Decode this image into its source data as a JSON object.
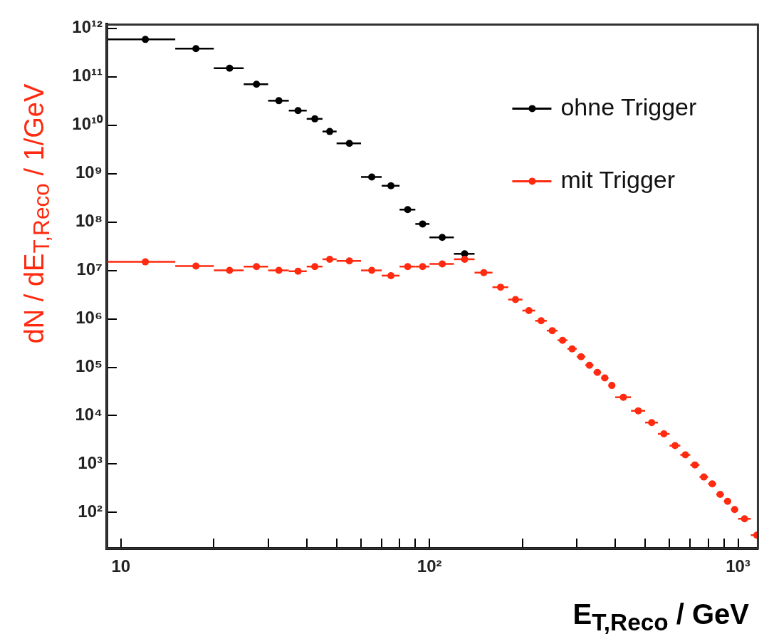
{
  "chart_data": {
    "type": "scatter",
    "xlabel": "E$_{T,Reco}$ / GeV",
    "ylabel": "dN / dE$_{T,Reco}$  /  1/GeV",
    "x": [
      12,
      17.5,
      22.5,
      27.5,
      32.5,
      37.5,
      42.5,
      47.5,
      55,
      65,
      75,
      85,
      95,
      110,
      130,
      150,
      170,
      190,
      210,
      230,
      250,
      270,
      290,
      310,
      330,
      350,
      370,
      390,
      425,
      475,
      525,
      575,
      625,
      675,
      725,
      775,
      825,
      875,
      925,
      975,
      1050,
      1150
    ],
    "series": [
      {
        "name": "ohne Trigger",
        "color": "#000000",
        "values": [
          590000000000.0,
          380000000000.0,
          150000000000.0,
          70000000000.0,
          32000000000.0,
          20000000000.0,
          13500000000.0,
          7400000000.0,
          4200000000.0,
          850000000.0,
          560000000.0,
          180000000.0,
          91000000.0,
          48000000.0,
          22000000.0,
          null,
          null,
          null,
          null,
          null,
          null,
          null,
          null,
          null,
          null,
          null,
          null,
          null,
          null,
          null,
          null,
          null,
          null,
          null,
          null,
          null,
          null,
          null,
          null,
          null,
          null,
          null
        ],
        "xerrors": [
          [
            9,
            15
          ],
          [
            15,
            20
          ],
          [
            20,
            25
          ],
          [
            25,
            30
          ],
          [
            30,
            35
          ],
          [
            35,
            40
          ],
          [
            40,
            45
          ],
          [
            45,
            50
          ],
          [
            50,
            60
          ],
          [
            60,
            70
          ],
          [
            70,
            80
          ],
          [
            80,
            90
          ],
          [
            90,
            100
          ],
          [
            100,
            120
          ],
          [
            120,
            140
          ],
          null,
          null,
          null,
          null,
          null,
          null,
          null,
          null,
          null,
          null,
          null,
          null,
          null,
          null,
          null,
          null,
          null,
          null,
          null,
          null,
          null,
          null,
          null,
          null,
          null,
          null,
          null
        ]
      },
      {
        "name": "mit Trigger",
        "color": "#ff2a10",
        "values": [
          15000000.0,
          12300000.0,
          10000000.0,
          12000000.0,
          10000000.0,
          9600000.0,
          12000000.0,
          17000000.0,
          15700000.0,
          10000000.0,
          7800000.0,
          12000000.0,
          12000000.0,
          13600000.0,
          17000000.0,
          9000000.0,
          4500000.0,
          2500000.0,
          1480000.0,
          910000.0,
          570000.0,
          360000.0,
          240000.0,
          165000.0,
          110000.0,
          78000.0,
          60000.0,
          42000.0,
          24000.0,
          12600.0,
          7200,
          4200,
          2400,
          1550,
          960,
          540,
          390,
          236,
          170,
          115,
          74,
          34
        ],
        "xerrors": [
          [
            9,
            15
          ],
          [
            15,
            20
          ],
          [
            20,
            25
          ],
          [
            25,
            30
          ],
          [
            30,
            35
          ],
          [
            35,
            40
          ],
          [
            40,
            45
          ],
          [
            45,
            50
          ],
          [
            50,
            60
          ],
          [
            60,
            70
          ],
          [
            70,
            80
          ],
          [
            80,
            90
          ],
          [
            90,
            100
          ],
          [
            100,
            120
          ],
          [
            120,
            140
          ],
          [
            140,
            160
          ],
          [
            160,
            180
          ],
          [
            180,
            200
          ],
          [
            200,
            220
          ],
          [
            220,
            240
          ],
          [
            240,
            260
          ],
          [
            260,
            280
          ],
          [
            280,
            300
          ],
          [
            300,
            320
          ],
          [
            320,
            340
          ],
          [
            340,
            360
          ],
          [
            360,
            380
          ],
          [
            380,
            400
          ],
          [
            400,
            450
          ],
          [
            450,
            500
          ],
          [
            500,
            550
          ],
          [
            550,
            600
          ],
          [
            600,
            650
          ],
          [
            650,
            700
          ],
          [
            700,
            750
          ],
          [
            750,
            800
          ],
          [
            800,
            850
          ],
          [
            850,
            900
          ],
          [
            900,
            950
          ],
          [
            950,
            1000
          ],
          [
            1000,
            1100
          ],
          [
            1100,
            1160
          ]
        ]
      }
    ],
    "log": "xy",
    "xlim": [
      9,
      1160
    ],
    "ylim": [
      18,
      1200000000000.0
    ],
    "xticks": [
      10,
      {
        "value": 20,
        "label": null
      },
      {
        "value": 30,
        "label": null
      },
      {
        "value": 40,
        "label": null
      },
      {
        "value": 50,
        "label": null
      },
      {
        "value": 60,
        "label": null
      },
      {
        "value": 70,
        "label": null
      },
      {
        "value": 80,
        "label": null
      },
      {
        "value": 90,
        "label": null
      },
      {
        "value": 100,
        "label": "10²"
      },
      {
        "value": 200,
        "label": null
      },
      {
        "value": 300,
        "label": null
      },
      {
        "value": 400,
        "label": null
      },
      {
        "value": 500,
        "label": null
      },
      {
        "value": 600,
        "label": null
      },
      {
        "value": 700,
        "label": null
      },
      {
        "value": 800,
        "label": null
      },
      {
        "value": 900,
        "label": null
      },
      {
        "value": 1000,
        "label": "10³"
      }
    ],
    "yticks": [
      {
        "value": 100,
        "label": "10²"
      },
      {
        "value": 1000,
        "label": "10³"
      },
      {
        "value": 10000,
        "label": "10⁴"
      },
      {
        "value": 100000,
        "label": "10⁵"
      },
      {
        "value": 1000000,
        "label": "10⁶"
      },
      {
        "value": 10000000,
        "label": "10⁷"
      },
      {
        "value": 100000000,
        "label": "10⁸"
      },
      {
        "value": 1000000000,
        "label": "10⁹"
      },
      {
        "value": 10000000000,
        "label": "10¹⁰"
      },
      {
        "value": 100000000000,
        "label": "10¹¹"
      },
      {
        "value": 1000000000000,
        "label": "10¹²"
      }
    ],
    "grid": false,
    "legend": "top right",
    "marker": "circle"
  }
}
